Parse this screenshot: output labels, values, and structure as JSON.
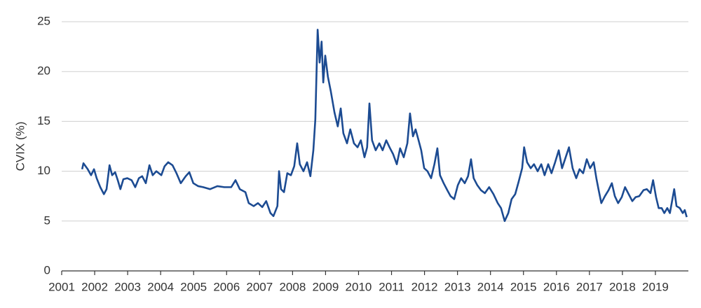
{
  "chart_data": {
    "type": "line",
    "y_label": "CVIX (%)",
    "x": [
      2001.62,
      2001.66,
      2001.79,
      2001.89,
      2001.98,
      2002.06,
      2002.17,
      2002.28,
      2002.36,
      2002.45,
      2002.53,
      2002.62,
      2002.7,
      2002.78,
      2002.87,
      2002.99,
      2003.12,
      2003.23,
      2003.34,
      2003.44,
      2003.55,
      2003.66,
      2003.76,
      2003.87,
      2004.02,
      2004.12,
      2004.23,
      2004.36,
      2004.48,
      2004.61,
      2004.76,
      2004.87,
      2004.99,
      2005.14,
      2005.29,
      2005.5,
      2005.72,
      2005.93,
      2006.14,
      2006.27,
      2006.4,
      2006.57,
      2006.67,
      2006.82,
      2006.95,
      2007.08,
      2007.2,
      2007.33,
      2007.42,
      2007.54,
      2007.59,
      2007.65,
      2007.74,
      2007.84,
      2007.95,
      2008.05,
      2008.14,
      2008.22,
      2008.33,
      2008.44,
      2008.54,
      2008.63,
      2008.69,
      2008.76,
      2008.82,
      2008.88,
      2008.93,
      2008.99,
      2009.07,
      2009.16,
      2009.27,
      2009.37,
      2009.46,
      2009.54,
      2009.65,
      2009.75,
      2009.86,
      2009.97,
      2010.07,
      2010.18,
      2010.26,
      2010.33,
      2010.41,
      2010.52,
      2010.63,
      2010.73,
      2010.84,
      2010.94,
      2011.05,
      2011.16,
      2011.26,
      2011.37,
      2011.48,
      2011.56,
      2011.65,
      2011.73,
      2011.82,
      2011.9,
      2011.99,
      2012.09,
      2012.2,
      2012.3,
      2012.39,
      2012.47,
      2012.58,
      2012.69,
      2012.79,
      2012.9,
      2013.01,
      2013.11,
      2013.22,
      2013.32,
      2013.41,
      2013.49,
      2013.6,
      2013.71,
      2013.83,
      2013.96,
      2014.09,
      2014.22,
      2014.32,
      2014.43,
      2014.54,
      2014.64,
      2014.75,
      2014.85,
      2014.96,
      2015.02,
      2015.11,
      2015.22,
      2015.32,
      2015.43,
      2015.54,
      2015.64,
      2015.75,
      2015.85,
      2015.96,
      2016.07,
      2016.17,
      2016.28,
      2016.38,
      2016.49,
      2016.6,
      2016.7,
      2016.81,
      2016.92,
      2017.02,
      2017.13,
      2017.21,
      2017.28,
      2017.36,
      2017.47,
      2017.58,
      2017.68,
      2017.77,
      2017.87,
      2017.98,
      2018.08,
      2018.19,
      2018.3,
      2018.4,
      2018.51,
      2018.64,
      2018.74,
      2018.85,
      2018.93,
      2019.02,
      2019.1,
      2019.19,
      2019.27,
      2019.36,
      2019.44,
      2019.57,
      2019.64,
      2019.74,
      2019.83,
      2019.89,
      2019.95
    ],
    "series": [
      {
        "color": "#1c4b92",
        "values": [
          10.2,
          10.8,
          10.2,
          9.6,
          10.2,
          9.3,
          8.4,
          7.7,
          8.2,
          10.6,
          9.6,
          9.9,
          9.1,
          8.2,
          9.2,
          9.3,
          9.1,
          8.4,
          9.3,
          9.5,
          8.8,
          10.6,
          9.6,
          10.0,
          9.6,
          10.5,
          10.9,
          10.6,
          9.8,
          8.8,
          9.5,
          9.9,
          8.8,
          8.5,
          8.4,
          8.2,
          8.5,
          8.4,
          8.4,
          9.1,
          8.2,
          7.9,
          6.8,
          6.5,
          6.8,
          6.4,
          7.0,
          5.8,
          5.5,
          6.5,
          10.0,
          8.2,
          7.9,
          9.8,
          9.6,
          10.5,
          12.8,
          10.7,
          10.0,
          10.9,
          9.5,
          12.1,
          15.2,
          24.2,
          20.9,
          23.0,
          18.9,
          21.6,
          19.5,
          18.0,
          15.9,
          14.5,
          16.3,
          13.8,
          12.8,
          14.2,
          12.8,
          12.4,
          13.1,
          11.4,
          12.4,
          16.8,
          13.1,
          12.1,
          12.8,
          12.1,
          13.1,
          12.4,
          11.7,
          10.7,
          12.3,
          11.4,
          12.8,
          15.8,
          13.5,
          14.2,
          13.1,
          12.1,
          10.3,
          10.0,
          9.3,
          10.7,
          12.3,
          9.6,
          8.8,
          8.1,
          7.5,
          7.2,
          8.6,
          9.3,
          8.8,
          9.5,
          11.2,
          9.3,
          8.6,
          8.1,
          7.8,
          8.4,
          7.7,
          6.8,
          6.3,
          5.0,
          5.8,
          7.2,
          7.7,
          8.9,
          10.3,
          12.4,
          10.9,
          10.3,
          10.7,
          10.0,
          10.7,
          9.6,
          10.7,
          9.8,
          10.9,
          12.1,
          10.3,
          11.4,
          12.4,
          10.3,
          9.3,
          10.2,
          9.8,
          11.2,
          10.3,
          10.9,
          9.3,
          8.1,
          6.8,
          7.5,
          8.1,
          8.8,
          7.5,
          6.8,
          7.4,
          8.4,
          7.7,
          7.0,
          7.4,
          7.5,
          8.1,
          8.2,
          7.8,
          9.1,
          7.4,
          6.3,
          6.3,
          5.8,
          6.3,
          5.8,
          8.2,
          6.5,
          6.3,
          5.8,
          6.1,
          5.4
        ]
      }
    ],
    "xlim": [
      2001,
      2020
    ],
    "xticks": [
      2001,
      2002,
      2003,
      2004,
      2005,
      2006,
      2007,
      2008,
      2009,
      2010,
      2011,
      2012,
      2013,
      2014,
      2015,
      2016,
      2017,
      2018,
      2019
    ],
    "ylim": [
      0,
      25
    ],
    "yticks": [
      0,
      5,
      10,
      15,
      20,
      25
    ],
    "grid": true
  }
}
